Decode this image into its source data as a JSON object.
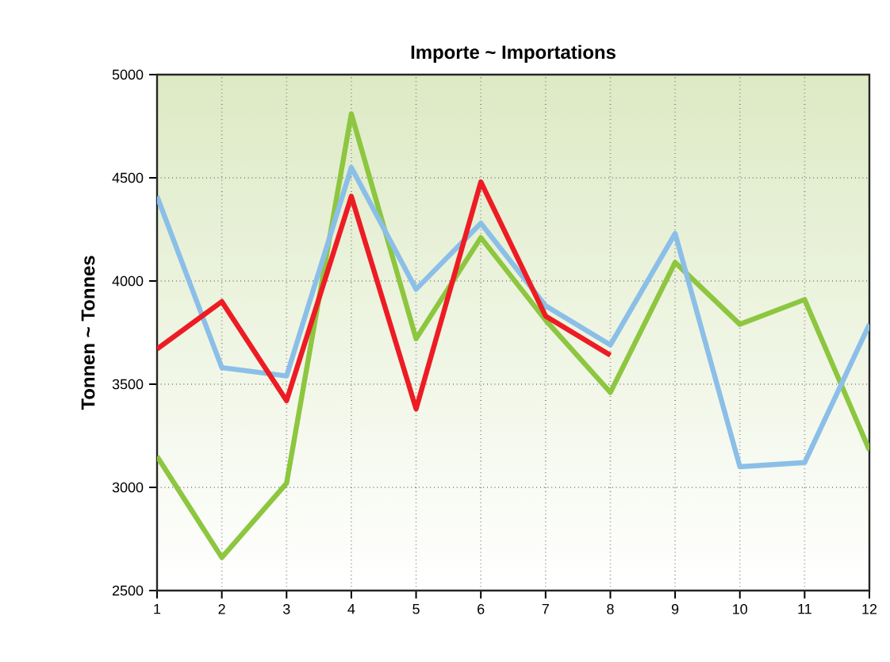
{
  "chart_data": {
    "type": "line",
    "title": "Importe ~ Importations",
    "ylabel": "Tonnen ~ Tonnes",
    "x": [
      1,
      2,
      3,
      4,
      5,
      6,
      7,
      8,
      9,
      10,
      11,
      12
    ],
    "series": [
      {
        "color": "#8dc63f",
        "values": [
          3150,
          2660,
          3020,
          4810,
          3720,
          4210,
          3810,
          3460,
          4090,
          3790,
          3910,
          3180
        ]
      },
      {
        "color": "#8bbfe8",
        "values": [
          4410,
          3580,
          3540,
          4550,
          3960,
          4280,
          3880,
          3690,
          4230,
          3100,
          3120,
          3790
        ]
      },
      {
        "color": "#ed1c24",
        "values": [
          3670,
          3900,
          3420,
          4410,
          3380,
          4480,
          3830,
          3640,
          null,
          null,
          null,
          null
        ]
      }
    ],
    "xlim": [
      1,
      12
    ],
    "xticks": [
      1,
      2,
      3,
      4,
      5,
      6,
      7,
      8,
      9,
      10,
      11,
      12
    ],
    "ylim": [
      2500,
      5000
    ],
    "yticks": [
      2500,
      3000,
      3500,
      4000,
      4500,
      5000
    ],
    "grid": true,
    "marker": "none",
    "line_style": "solid"
  }
}
